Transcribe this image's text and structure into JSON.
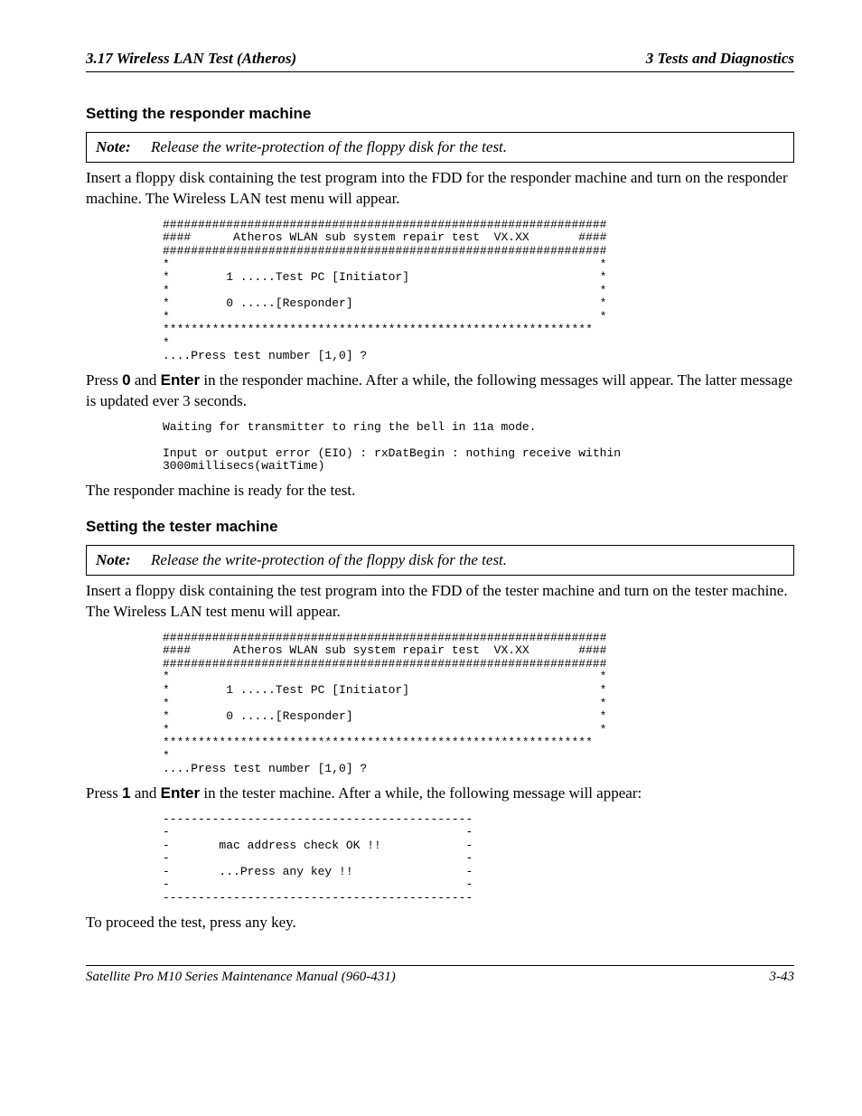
{
  "header": {
    "left": "3.17  Wireless LAN Test  (Atheros)",
    "right": "3   Tests and Diagnostics"
  },
  "section1": {
    "heading": "Setting the responder machine",
    "note_label": "Note:",
    "note_text": "Release the write-protection of the floppy disk for the test.",
    "p1": "Insert a floppy disk containing the test program into the FDD for the responder machine and turn on the responder machine. The Wireless LAN test menu will appear.",
    "code1": "###############################################################\n####      Atheros WLAN sub system repair test  VX.XX       ####\n###############################################################\n*                                                             *\n*        1 .....Test PC [Initiator]                           *\n*                                                             *\n*        0 .....[Responder]                                   *\n*                                                             *\n*************************************************************\n*\n....Press test number [1,0] ?",
    "p2_pre": "Press ",
    "p2_key1": "0",
    "p2_mid": " and ",
    "p2_key2": "Enter",
    "p2_post": " in the responder machine. After a while, the following messages will appear. The latter message is updated ever 3 seconds.",
    "code2": "Waiting for transmitter to ring the bell in 11a mode.\n\nInput or output error (EIO) : rxDatBegin : nothing receive within\n3000millisecs(waitTime)",
    "p3": "The responder machine is ready for the test."
  },
  "section2": {
    "heading": "Setting the tester machine",
    "note_label": "Note:",
    "note_text": "Release the write-protection of the floppy disk for the test.",
    "p1": "Insert a floppy disk containing the test program into the FDD of the tester machine and turn on the tester machine. The Wireless LAN test menu will appear.",
    "code1": "###############################################################\n####      Atheros WLAN sub system repair test  VX.XX       ####\n###############################################################\n*                                                             *\n*        1 .....Test PC [Initiator]                           *\n*                                                             *\n*        0 .....[Responder]                                   *\n*                                                             *\n*************************************************************\n*\n....Press test number [1,0] ?",
    "p2_pre": "Press ",
    "p2_key1": "1",
    "p2_mid": " and ",
    "p2_key2": "Enter",
    "p2_post": " in the tester machine. After a while, the following message will appear:",
    "code2": "--------------------------------------------\n-                                          -\n-       mac address check OK !!            -\n-                                          -\n-       ...Press any key !!                -\n-                                          -\n--------------------------------------------",
    "p3": "To proceed the test, press any key."
  },
  "footer": {
    "left": "Satellite Pro M10 Series Maintenance Manual (960-431)",
    "right": "3-43"
  }
}
